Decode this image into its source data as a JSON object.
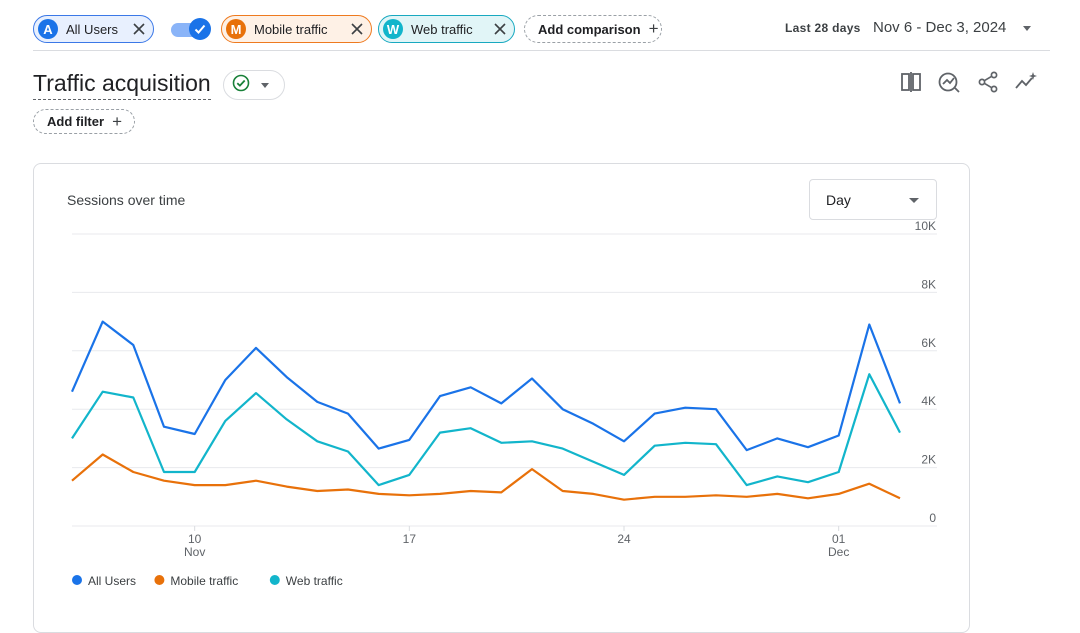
{
  "comparisons": [
    {
      "letter": "A",
      "label": "All Users",
      "color": "#1a73e8"
    },
    {
      "letter": "M",
      "label": "Mobile traffic",
      "color": "#e8710a"
    },
    {
      "letter": "W",
      "label": "Web traffic",
      "color": "#12b5cb"
    }
  ],
  "add_comparison_label": "Add comparison",
  "date": {
    "label": "Last 28 days",
    "range": "Nov 6 - Dec 3, 2024"
  },
  "report": {
    "title": "Traffic acquisition",
    "add_filter_label": "Add filter"
  },
  "toolbar_icons": [
    "compare-icon",
    "insights-icon",
    "share-icon",
    "sparkle-trend-icon"
  ],
  "card": {
    "title": "Sessions over time",
    "granularity": "Day"
  },
  "chart_data": {
    "type": "line",
    "x": [
      "Nov 6",
      "Nov 7",
      "Nov 8",
      "Nov 9",
      "Nov 10",
      "Nov 11",
      "Nov 12",
      "Nov 13",
      "Nov 14",
      "Nov 15",
      "Nov 16",
      "Nov 17",
      "Nov 18",
      "Nov 19",
      "Nov 20",
      "Nov 21",
      "Nov 22",
      "Nov 23",
      "Nov 24",
      "Nov 25",
      "Nov 26",
      "Nov 27",
      "Nov 28",
      "Nov 29",
      "Nov 30",
      "Dec 1",
      "Dec 2",
      "Dec 3"
    ],
    "x_ticks": [
      {
        "x": "Nov 10",
        "label": "10",
        "sublabel": "Nov"
      },
      {
        "x": "Nov 17",
        "label": "17",
        "sublabel": ""
      },
      {
        "x": "Nov 24",
        "label": "24",
        "sublabel": ""
      },
      {
        "x": "Dec 1",
        "label": "01",
        "sublabel": "Dec"
      }
    ],
    "y_ticks": [
      {
        "v": 0,
        "label": "0"
      },
      {
        "v": 2000,
        "label": "2K"
      },
      {
        "v": 4000,
        "label": "4K"
      },
      {
        "v": 6000,
        "label": "6K"
      },
      {
        "v": 8000,
        "label": "8K"
      },
      {
        "v": 10000,
        "label": "10K"
      }
    ],
    "ylim": [
      0,
      10000
    ],
    "series": [
      {
        "name": "All Users",
        "color": "#1a73e8",
        "values": [
          4600,
          7000,
          6200,
          3400,
          3150,
          5000,
          6100,
          5100,
          4250,
          3850,
          2650,
          2950,
          4450,
          4750,
          4200,
          5050,
          4000,
          3500,
          2900,
          3850,
          4050,
          4000,
          2600,
          3000,
          2700,
          3100,
          6900,
          4200
        ]
      },
      {
        "name": "Mobile traffic",
        "color": "#e8710a",
        "values": [
          1550,
          2450,
          1850,
          1550,
          1400,
          1400,
          1550,
          1350,
          1200,
          1250,
          1100,
          1050,
          1100,
          1200,
          1150,
          1950,
          1200,
          1100,
          900,
          1000,
          1000,
          1050,
          1000,
          1100,
          950,
          1100,
          1450,
          950
        ]
      },
      {
        "name": "Web traffic",
        "color": "#12b5cb",
        "values": [
          3000,
          4600,
          4400,
          1850,
          1850,
          3600,
          4550,
          3650,
          2900,
          2550,
          1400,
          1750,
          3200,
          3350,
          2850,
          2900,
          2650,
          2200,
          1750,
          2750,
          2850,
          2800,
          1400,
          1700,
          1500,
          1850,
          5200,
          3200
        ]
      }
    ]
  }
}
